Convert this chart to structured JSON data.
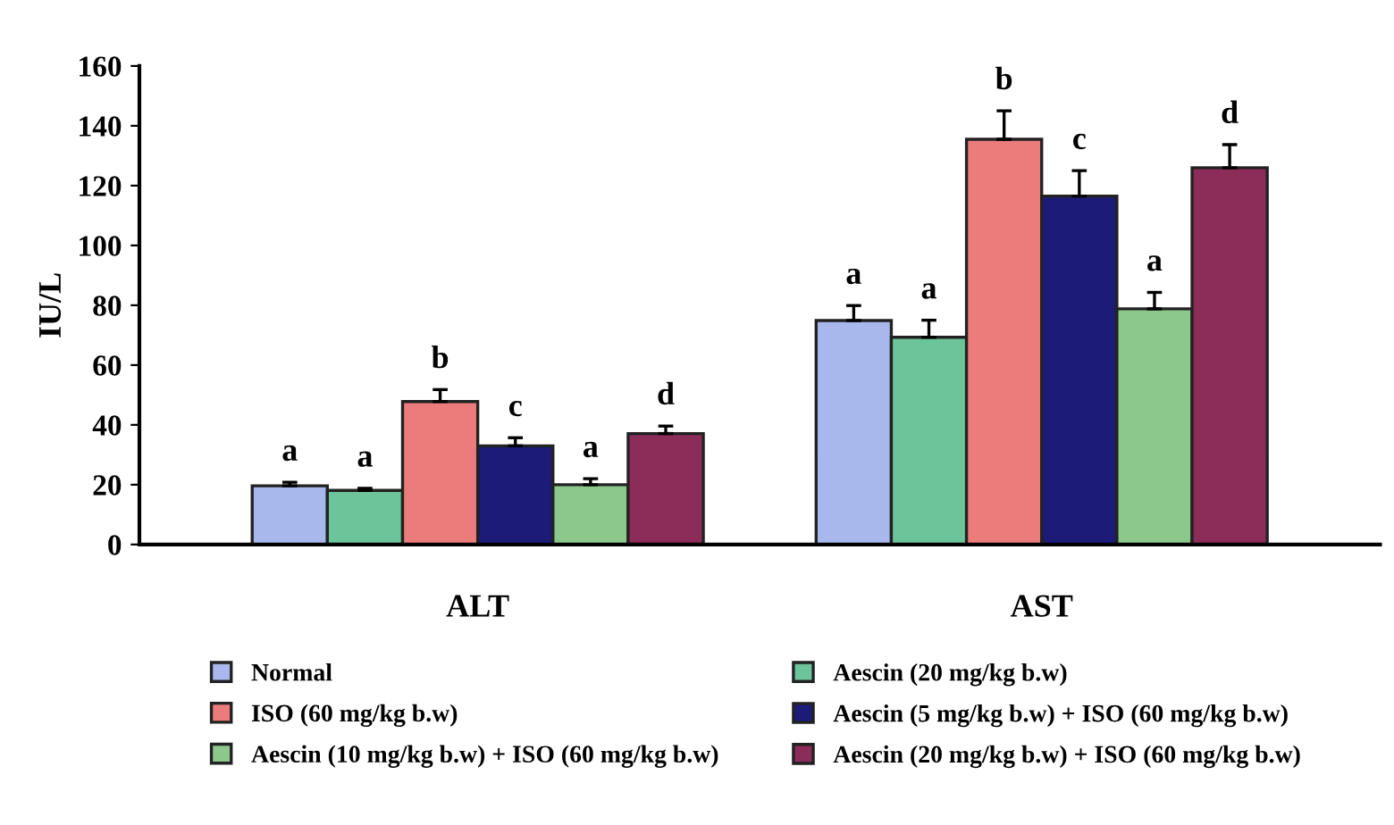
{
  "chart_data": {
    "type": "bar",
    "ylabel": "IU/L",
    "categories": [
      "ALT",
      "AST"
    ],
    "series": [
      {
        "name": "Normal",
        "color": "#a8b8ec",
        "values": [
          19.6,
          74.9
        ],
        "errors": [
          1.2,
          5
        ]
      },
      {
        "name": "Aescin (20 mg/kg b.w)",
        "color": "#6cc49a",
        "values": [
          18.1,
          69.3
        ],
        "errors": [
          0.7,
          5.7
        ]
      },
      {
        "name": "ISO (60 mg/kg b.w)",
        "color": "#ec7c7c",
        "values": [
          47.8,
          135.5
        ],
        "errors": [
          4,
          9.5
        ]
      },
      {
        "name": "Aescin (5 mg/kg b.w) + ISO (60 mg/kg b.w)",
        "color": "#1c1c78",
        "values": [
          33,
          116.5
        ],
        "errors": [
          2.7,
          8.5
        ]
      },
      {
        "name": "Aescin (10 mg/kg b.w) + ISO (60 mg/kg b.w)",
        "color": "#8cc88c",
        "values": [
          20,
          78.8
        ],
        "errors": [
          2,
          5.5
        ]
      },
      {
        "name": "Aescin (20 mg/kg b.w) + ISO (60 mg/kg b.w)",
        "color": "#8c2c58",
        "values": [
          37.1,
          126
        ],
        "errors": [
          2.5,
          7.7
        ]
      }
    ],
    "annotations": [
      "a",
      "a",
      "b",
      "c",
      "a",
      "d",
      "a",
      "a",
      "b",
      "c",
      "a",
      "d"
    ],
    "ylim": [
      0,
      160
    ],
    "yticks": [
      0,
      20,
      40,
      60,
      80,
      100,
      120,
      140,
      160
    ],
    "grid": false,
    "legend": "bottom"
  }
}
